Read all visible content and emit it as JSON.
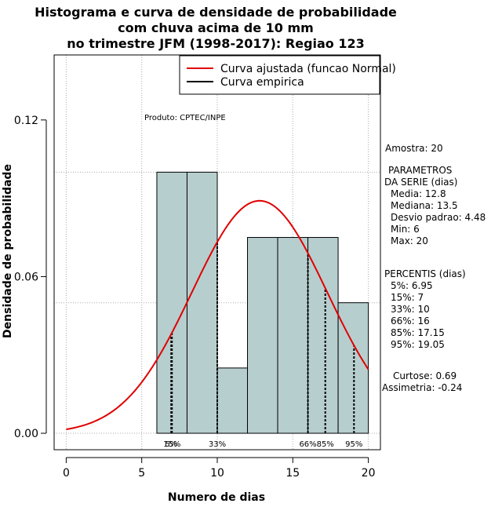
{
  "chart_data": {
    "type": "bar",
    "title_lines": [
      "Histograma e curva de densidade de probabilidade",
      "com chuva acima de 10 mm",
      "no trimestre JFM (1998-2017): Regiao 123"
    ],
    "xlabel": "Numero de dias",
    "ylabel": "Densidade de probabilidade",
    "xlim": [
      -0.8,
      20.8
    ],
    "ylim": [
      -0.0063,
      0.1449
    ],
    "x_ticks": [
      0,
      5,
      10,
      15,
      20
    ],
    "y_ticks": [
      0.0,
      0.06,
      0.12
    ],
    "y_tick_labels": [
      "0.00",
      "0.06",
      "0.12"
    ],
    "grid": true,
    "bar_color": "#b7cece",
    "curve_color": "#e00000",
    "bins": [
      {
        "x0": 6,
        "x1": 8,
        "density": 0.1
      },
      {
        "x0": 8,
        "x1": 10,
        "density": 0.1
      },
      {
        "x0": 10,
        "x1": 12,
        "density": 0.025
      },
      {
        "x0": 12,
        "x1": 14,
        "density": 0.075
      },
      {
        "x0": 14,
        "x1": 16,
        "density": 0.075
      },
      {
        "x0": 16,
        "x1": 18,
        "density": 0.075
      },
      {
        "x0": 18,
        "x1": 20,
        "density": 0.05
      }
    ],
    "normal_fit": {
      "mean": 12.8,
      "sd": 4.48,
      "x_from": 0,
      "x_to": 20
    },
    "percentile_markers": [
      {
        "label": "5%",
        "x": 6.95
      },
      {
        "label": "15%",
        "x": 7
      },
      {
        "label": "33%",
        "x": 10
      },
      {
        "label": "66%",
        "x": 16
      },
      {
        "label": "85%",
        "x": 17.15
      },
      {
        "label": "95%",
        "x": 19.05
      }
    ],
    "legend": {
      "placement": "top-right",
      "entries": [
        {
          "label": "Curva ajustada (funcao Normal)",
          "color": "#e00000"
        },
        {
          "label": "Curva empirica",
          "color": "#000000"
        }
      ]
    },
    "annotation": "Produto: CPTEC/INPE"
  },
  "side_panel": {
    "sample": "Amostra: 20",
    "params_header": [
      "PARAMETROS",
      "DA SERIE (dias)"
    ],
    "params": [
      "Media: 12.8",
      "Mediana: 13.5",
      "Desvio padrao: 4.48",
      "Min: 6",
      "Max: 20"
    ],
    "percentis_header": "PERCENTIS (dias)",
    "percentis": [
      "5%: 6.95",
      "15%: 7",
      "33%: 10",
      "66%: 16",
      "85%: 17.15",
      "95%: 19.05"
    ],
    "shape": [
      "Curtose: 0.69",
      "Assimetria: -0.24"
    ]
  }
}
